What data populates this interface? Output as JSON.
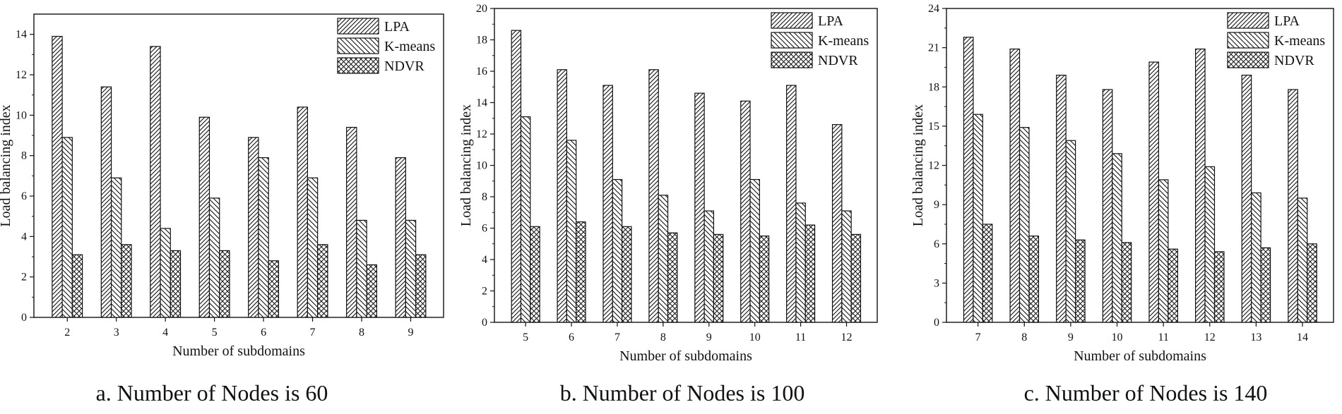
{
  "chart_data": [
    {
      "type": "bar",
      "caption": "a. Number of Nodes is 60",
      "xlabel": "Number of subdomains",
      "ylabel": "Load balancing index",
      "categories": [
        "2",
        "3",
        "4",
        "5",
        "6",
        "7",
        "8",
        "9"
      ],
      "ylim": [
        0,
        15
      ],
      "yticks": [
        0,
        2,
        4,
        6,
        8,
        10,
        12,
        14
      ],
      "legend_position": "top-right",
      "series": [
        {
          "name": "LPA",
          "pattern": "diag-dense",
          "values": [
            13.9,
            11.4,
            13.4,
            9.9,
            8.9,
            10.4,
            9.4,
            7.9
          ]
        },
        {
          "name": "K-means",
          "pattern": "diag-back",
          "values": [
            8.9,
            6.9,
            4.4,
            5.9,
            7.9,
            6.9,
            4.8,
            4.8
          ]
        },
        {
          "name": "NDVR",
          "pattern": "crosshatch",
          "values": [
            3.1,
            3.6,
            3.3,
            3.3,
            2.8,
            3.6,
            2.6,
            3.1
          ]
        }
      ]
    },
    {
      "type": "bar",
      "caption": "b. Number of Nodes is 100",
      "xlabel": "Number of subdomains",
      "ylabel": "Load balancing index",
      "categories": [
        "5",
        "6",
        "7",
        "8",
        "9",
        "10",
        "11",
        "12"
      ],
      "ylim": [
        0,
        20
      ],
      "yticks": [
        0,
        2,
        4,
        6,
        8,
        10,
        12,
        14,
        16,
        18,
        20
      ],
      "legend_position": "top-right",
      "series": [
        {
          "name": "LPA",
          "pattern": "diag-dense",
          "values": [
            18.6,
            16.1,
            15.1,
            16.1,
            14.6,
            14.1,
            15.1,
            12.6
          ]
        },
        {
          "name": "K-means",
          "pattern": "diag-back",
          "values": [
            13.1,
            11.6,
            9.1,
            8.1,
            7.1,
            9.1,
            7.6,
            7.1
          ]
        },
        {
          "name": "NDVR",
          "pattern": "crosshatch",
          "values": [
            6.1,
            6.4,
            6.1,
            5.7,
            5.6,
            5.5,
            6.2,
            5.6
          ]
        }
      ]
    },
    {
      "type": "bar",
      "caption": "c. Number of Nodes is 140",
      "xlabel": "Number of subdomains",
      "ylabel": "Load balancing index",
      "categories": [
        "7",
        "8",
        "9",
        "10",
        "11",
        "12",
        "13",
        "14"
      ],
      "ylim": [
        0,
        24
      ],
      "yticks": [
        0,
        3,
        6,
        9,
        12,
        15,
        18,
        21,
        24
      ],
      "legend_position": "top-right",
      "series": [
        {
          "name": "LPA",
          "pattern": "diag-dense",
          "values": [
            21.8,
            20.9,
            18.9,
            17.8,
            19.9,
            20.9,
            18.9,
            17.8
          ]
        },
        {
          "name": "K-means",
          "pattern": "diag-back",
          "values": [
            15.9,
            14.9,
            13.9,
            12.9,
            10.9,
            11.9,
            9.9,
            9.5
          ]
        },
        {
          "name": "NDVR",
          "pattern": "crosshatch",
          "values": [
            7.5,
            6.6,
            6.3,
            6.1,
            5.6,
            5.4,
            5.7,
            6.0
          ]
        }
      ]
    }
  ]
}
